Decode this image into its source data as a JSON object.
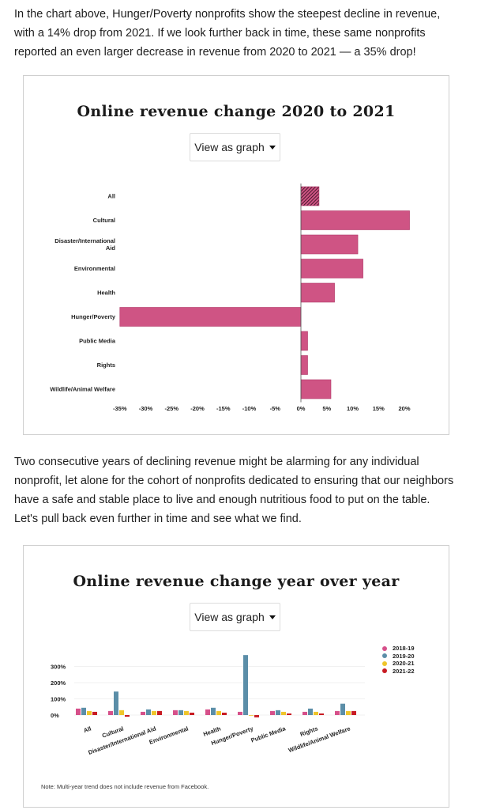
{
  "intro_paragraph": "In the chart above, Hunger/Poverty nonprofits show the steepest decline in revenue, with a 14% drop from 2021. If we look further back in time, these same nonprofits reported an even larger decrease in revenue from 2020 to 2021 — a 35% drop!",
  "middle_paragraph": "Two consecutive years of declining revenue might be alarming for any individual nonprofit, let alone for the cohort of nonprofits dedicated to ensuring that our neighbors have a safe and stable place to live and enough nutritious food to put on the table. Let's pull back even further in time and see what we find.",
  "chart1": {
    "view_button_label": "View as graph"
  },
  "chart2": {
    "view_button_label": "View as graph",
    "note": "Note: Multi-year trend does not include revenue from Facebook."
  },
  "colors": {
    "bar_pink": "#cf5484",
    "series": [
      "#d6508a",
      "#5b8ea8",
      "#efc52a",
      "#c81b23"
    ]
  },
  "chart_data": [
    {
      "type": "bar",
      "orientation": "horizontal",
      "title": "Online revenue change 2020 to 2021",
      "categories": [
        "All",
        "Cultural",
        "Disaster/International Aid",
        "Environmental",
        "Health",
        "Hunger/Poverty",
        "Public Media",
        "Rights",
        "Wildlife/Animal Welfare"
      ],
      "values": [
        3.5,
        21,
        11,
        12,
        6.5,
        -35,
        1.3,
        1.3,
        5.8
      ],
      "highlight_category": "All",
      "x_ticks": [
        "-35%",
        "-30%",
        "-25%",
        "-20%",
        "-15%",
        "-10%",
        "-5%",
        "0%",
        "5%",
        "10%",
        "15%",
        "20%"
      ],
      "xlim": [
        -35,
        20
      ],
      "xlabel": "",
      "ylabel": "",
      "grid": false
    },
    {
      "type": "bar",
      "title": "Online revenue change year over year",
      "categories": [
        "All",
        "Cultural",
        "Disaster/International Aid",
        "Environmental",
        "Health",
        "Hunger/Poverty",
        "Public Media",
        "Rights",
        "Wildlife/Animal Welfare"
      ],
      "series": [
        {
          "name": "2018-19",
          "values": [
            40,
            25,
            20,
            30,
            35,
            20,
            25,
            20,
            25
          ]
        },
        {
          "name": "2019-20",
          "values": [
            45,
            145,
            35,
            30,
            45,
            370,
            30,
            40,
            70
          ]
        },
        {
          "name": "2020-21",
          "values": [
            25,
            30,
            25,
            25,
            25,
            0,
            20,
            20,
            25
          ]
        },
        {
          "name": "2021-22",
          "values": [
            20,
            -10,
            25,
            15,
            15,
            -14,
            10,
            10,
            25
          ]
        }
      ],
      "y_ticks": [
        "0%",
        "100%",
        "200%",
        "300%"
      ],
      "ylim": [
        -20,
        380
      ],
      "xlabel": "",
      "ylabel": "",
      "grid": true,
      "legend_position": "top-right"
    }
  ]
}
